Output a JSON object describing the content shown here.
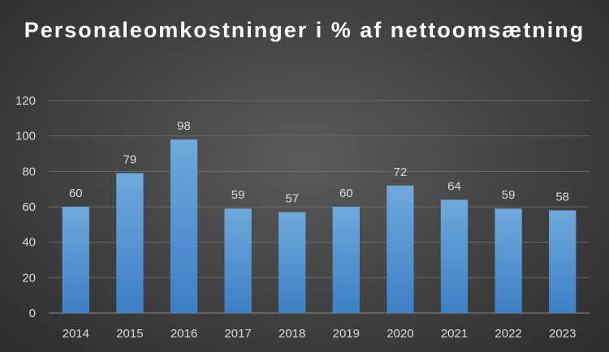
{
  "chart_data": {
    "type": "bar",
    "title": "Personaleomkostninger i % af nettoomsætning",
    "xlabel": "",
    "ylabel": "",
    "categories": [
      "2014",
      "2015",
      "2016",
      "2017",
      "2018",
      "2019",
      "2020",
      "2021",
      "2022",
      "2023"
    ],
    "values": [
      60,
      79,
      98,
      59,
      57,
      60,
      72,
      64,
      59,
      58
    ],
    "ylim": [
      0,
      120
    ],
    "yticks": [
      0,
      20,
      40,
      60,
      80,
      100,
      120
    ],
    "grid": true,
    "legend": "none",
    "data_labels": true,
    "colors": {
      "bar_top": "#6fa8dc",
      "bar_bottom": "#3d7fc4",
      "background": "#404040",
      "text": "#d9d9d9"
    }
  }
}
